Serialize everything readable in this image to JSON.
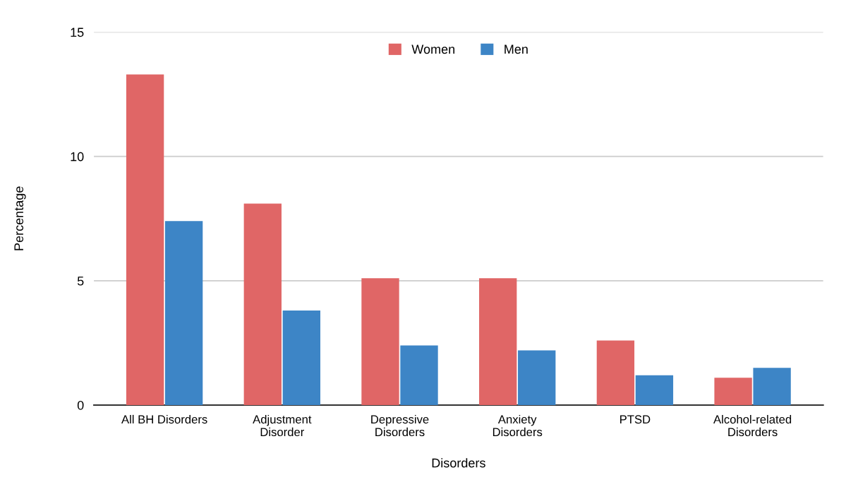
{
  "chart_data": {
    "type": "bar",
    "xlabel": "Disorders",
    "ylabel": "Percentage",
    "categories": [
      "All BH Disorders",
      "Adjustment\nDisorder",
      "Depressive\nDisorders",
      "Anxiety\nDisorders",
      "PTSD",
      "Alcohol-related\nDisorders"
    ],
    "series": [
      {
        "name": "Women",
        "color": "#e06666",
        "values": [
          13.3,
          8.1,
          5.1,
          5.1,
          2.6,
          1.1
        ]
      },
      {
        "name": "Men",
        "color": "#3d85c6",
        "values": [
          7.4,
          3.8,
          2.4,
          2.2,
          1.2,
          1.5
        ]
      }
    ],
    "ylim": [
      0,
      15
    ],
    "yticks": [
      0,
      5,
      10,
      15
    ],
    "grid": "y",
    "legend": "top"
  }
}
